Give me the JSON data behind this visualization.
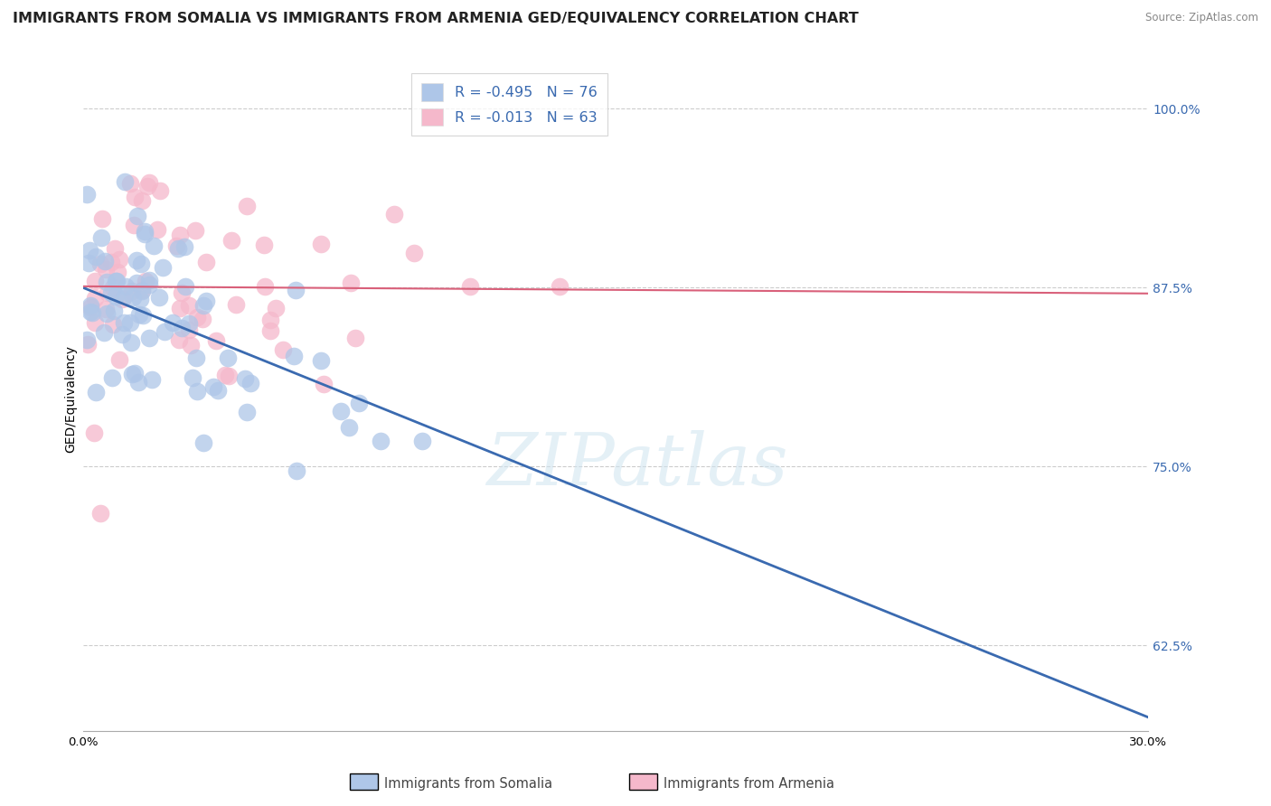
{
  "title": "IMMIGRANTS FROM SOMALIA VS IMMIGRANTS FROM ARMENIA GED/EQUIVALENCY CORRELATION CHART",
  "source": "Source: ZipAtlas.com",
  "ylabel": "GED/Equivalency",
  "yticks": [
    0.625,
    0.75,
    0.875,
    1.0
  ],
  "ytick_labels": [
    "62.5%",
    "75.0%",
    "87.5%",
    "100.0%"
  ],
  "xlim": [
    0.0,
    0.3
  ],
  "ylim": [
    0.565,
    1.03
  ],
  "somalia_R": "-0.495",
  "somalia_N": "76",
  "armenia_R": "-0.013",
  "armenia_N": "63",
  "somalia_color": "#aec6e8",
  "armenia_color": "#f5b8cb",
  "somalia_line_color": "#3a6ab0",
  "armenia_line_color": "#d9607a",
  "legend_label_somalia": "Immigrants from Somalia",
  "legend_label_armenia": "Immigrants from Armenia",
  "watermark": "ZIPatlas",
  "background_color": "#ffffff",
  "grid_color": "#cccccc",
  "title_fontsize": 11.5,
  "axis_label_fontsize": 10,
  "tick_fontsize": 9.5,
  "dot_size": 200,
  "somalia_trend_x0": 0.0,
  "somalia_trend_y0": 0.875,
  "somalia_trend_x1": 0.3,
  "somalia_trend_y1": 0.575,
  "armenia_trend_x0": 0.0,
  "armenia_trend_y0": 0.876,
  "armenia_trend_x1": 0.3,
  "armenia_trend_y1": 0.871
}
